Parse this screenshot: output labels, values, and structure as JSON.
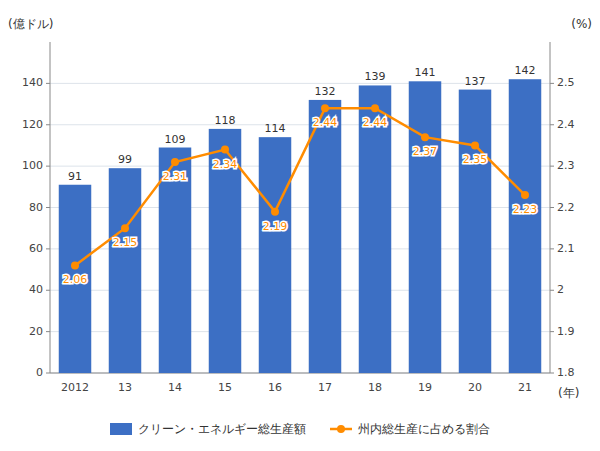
{
  "chart_data": {
    "type": "bar",
    "categories": [
      "2012",
      "13",
      "14",
      "15",
      "16",
      "17",
      "18",
      "19",
      "20",
      "21"
    ],
    "series": [
      {
        "name": "クリーン・エネルギー総生産額",
        "type": "bar",
        "color": "#3C6FC4",
        "values": [
          91,
          99,
          109,
          118,
          114,
          132,
          139,
          141,
          137,
          142
        ]
      },
      {
        "name": "州内総生産に占める割合",
        "type": "line",
        "axis": "y2",
        "color": "#FF8C00",
        "marker": "circle",
        "values": [
          2.06,
          2.15,
          2.31,
          2.34,
          2.19,
          2.44,
          2.44,
          2.37,
          2.35,
          2.23
        ]
      }
    ],
    "ylabel": "(億ドル)",
    "y2label": "(%)",
    "xlabel": "(年)",
    "ylim": [
      0,
      160
    ],
    "yticks": [
      0,
      20,
      40,
      60,
      80,
      100,
      120,
      140
    ],
    "y2lim": [
      1.8,
      2.6
    ],
    "y2ticks": [
      1.8,
      1.9,
      2,
      2.1,
      2.2,
      2.3,
      2.4,
      2.5
    ],
    "grid": true,
    "legend": "bottom",
    "data_labels": true
  }
}
